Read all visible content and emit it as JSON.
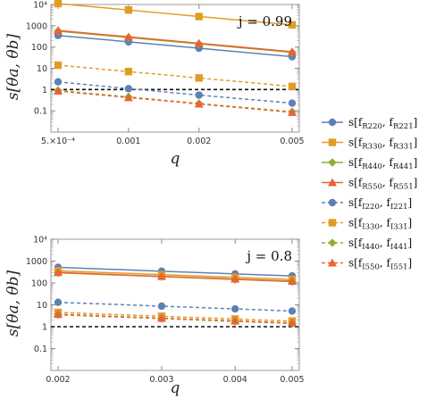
{
  "legend": [
    {
      "text": "s[f",
      "sub1": "R220",
      "mid": ", f",
      "sub2": "R221",
      "end": "]"
    },
    {
      "text": "s[f",
      "sub1": "R330",
      "mid": ", f",
      "sub2": "R331",
      "end": "]"
    },
    {
      "text": "s[f",
      "sub1": "R440",
      "mid": ", f",
      "sub2": "R441",
      "end": "]"
    },
    {
      "text": "s[f",
      "sub1": "R550",
      "mid": ", f",
      "sub2": "R551",
      "end": "]"
    },
    {
      "text": "s[f",
      "sub1": "I220",
      "mid": ", f",
      "sub2": "I221",
      "end": "]"
    },
    {
      "text": "s[f",
      "sub1": "I330",
      "mid": ", f",
      "sub2": "I331",
      "end": "]"
    },
    {
      "text": "s[f",
      "sub1": "I440",
      "mid": ", f",
      "sub2": "I441",
      "end": "]"
    },
    {
      "text": "s[f",
      "sub1": "I550",
      "mid": ", f",
      "sub2": "I551",
      "end": "]"
    }
  ],
  "series_styles": [
    {
      "color": "#5e81b5",
      "marker": "circle",
      "dash": false
    },
    {
      "color": "#e19c24",
      "marker": "square",
      "dash": false
    },
    {
      "color": "#8fb032",
      "marker": "diamond",
      "dash": false
    },
    {
      "color": "#eb6235",
      "marker": "triangle",
      "dash": false
    },
    {
      "color": "#5e81b5",
      "marker": "circle",
      "dash": true
    },
    {
      "color": "#e19c24",
      "marker": "square",
      "dash": true
    },
    {
      "color": "#8fb032",
      "marker": "diamond",
      "dash": true
    },
    {
      "color": "#eb6235",
      "marker": "triangle",
      "dash": true
    }
  ],
  "chart_data": [
    {
      "type": "line",
      "annotation": "j = 0.99",
      "xlabel": "q",
      "ylabel": "s[θa, θb]",
      "xscale": "log",
      "yscale": "log",
      "xlim": [
        0.0005,
        0.005
      ],
      "ylim": [
        0.01,
        10000
      ],
      "x": [
        0.0005,
        0.001,
        0.002,
        0.005
      ],
      "xticks": [
        "5.×10⁻⁴",
        "0.001",
        "0.002",
        "0.005"
      ],
      "yticks": [
        "0.1",
        "1",
        "10",
        "100",
        "1000",
        "10⁴"
      ],
      "reference_line": 1,
      "series": [
        {
          "values": [
            350,
            175,
            88,
            35
          ]
        },
        {
          "values": [
            11000,
            5500,
            2700,
            1100
          ]
        },
        {
          "values": [
            560,
            280,
            140,
            56
          ]
        },
        {
          "values": [
            600,
            300,
            150,
            60
          ]
        },
        {
          "values": [
            2.3,
            1.1,
            0.55,
            0.23
          ]
        },
        {
          "values": [
            14,
            7,
            3.5,
            1.4
          ]
        },
        {
          "values": [
            0.9,
            0.45,
            0.22,
            0.09
          ]
        },
        {
          "values": [
            0.85,
            0.42,
            0.21,
            0.085
          ]
        }
      ]
    },
    {
      "type": "line",
      "annotation": "j = 0.8",
      "xlabel": "q",
      "ylabel": "s[θa, θb]",
      "xscale": "log",
      "yscale": "log",
      "xlim": [
        0.002,
        0.005
      ],
      "ylim": [
        0.01,
        10000
      ],
      "x": [
        0.002,
        0.003,
        0.004,
        0.005
      ],
      "xticks": [
        "0.002",
        "0.003",
        "0.004",
        "0.005"
      ],
      "yticks": [
        "0.1",
        "1",
        "10",
        "100",
        "1000",
        "10⁴"
      ],
      "reference_line": 1,
      "series": [
        {
          "values": [
            520,
            345,
            260,
            210
          ]
        },
        {
          "values": [
            360,
            240,
            180,
            145
          ]
        },
        {
          "values": [
            290,
            195,
            145,
            115
          ]
        },
        {
          "values": [
            300,
            200,
            150,
            120
          ]
        },
        {
          "values": [
            13,
            8.7,
            6.5,
            5.2
          ]
        },
        {
          "values": [
            4.5,
            3.0,
            2.25,
            1.8
          ]
        },
        {
          "values": [
            3.5,
            2.35,
            1.75,
            1.4
          ]
        },
        {
          "values": [
            3.7,
            2.45,
            1.85,
            1.5
          ]
        }
      ]
    }
  ]
}
